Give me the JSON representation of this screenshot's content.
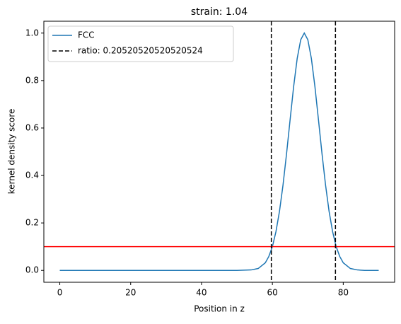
{
  "chart_data": {
    "type": "line",
    "title": "strain: 1.04",
    "xlabel": "Position in z",
    "ylabel": "kernel density score",
    "x": [
      0,
      10,
      20,
      30,
      40,
      50,
      54,
      56,
      58,
      59,
      60,
      61,
      62,
      63,
      64,
      65,
      66,
      67,
      68,
      69,
      70,
      71,
      72,
      73,
      74,
      75,
      76,
      77,
      78,
      79,
      80,
      82,
      84,
      86,
      90
    ],
    "series": [
      {
        "name": "FCC",
        "color": "#1f77b4",
        "values": [
          0,
          0,
          0,
          0,
          0,
          0,
          0.002,
          0.008,
          0.032,
          0.059,
          0.1,
          0.163,
          0.249,
          0.36,
          0.492,
          0.635,
          0.775,
          0.893,
          0.972,
          1.0,
          0.972,
          0.893,
          0.775,
          0.635,
          0.492,
          0.36,
          0.249,
          0.163,
          0.1,
          0.059,
          0.032,
          0.008,
          0.002,
          0,
          0
        ]
      }
    ],
    "vlines": {
      "name": "ratio: 0.20520520520520524",
      "color": "#000000",
      "values": [
        59.7,
        77.8
      ]
    },
    "hline": {
      "value": 0.1,
      "color": "#ff0000"
    },
    "xlim": [
      -4.5,
      94.5
    ],
    "ylim": [
      -0.05,
      1.05
    ],
    "xticks": [
      0,
      20,
      40,
      60,
      80
    ],
    "yticks": [
      {
        "value": 0,
        "label": "0.0"
      },
      {
        "value": 0.2,
        "label": "0.2"
      },
      {
        "value": 0.4,
        "label": "0.4"
      },
      {
        "value": 0.6,
        "label": "0.6"
      },
      {
        "value": 0.8,
        "label": "0.8"
      },
      {
        "value": 1,
        "label": "1.0"
      }
    ],
    "legend": "upper left"
  }
}
